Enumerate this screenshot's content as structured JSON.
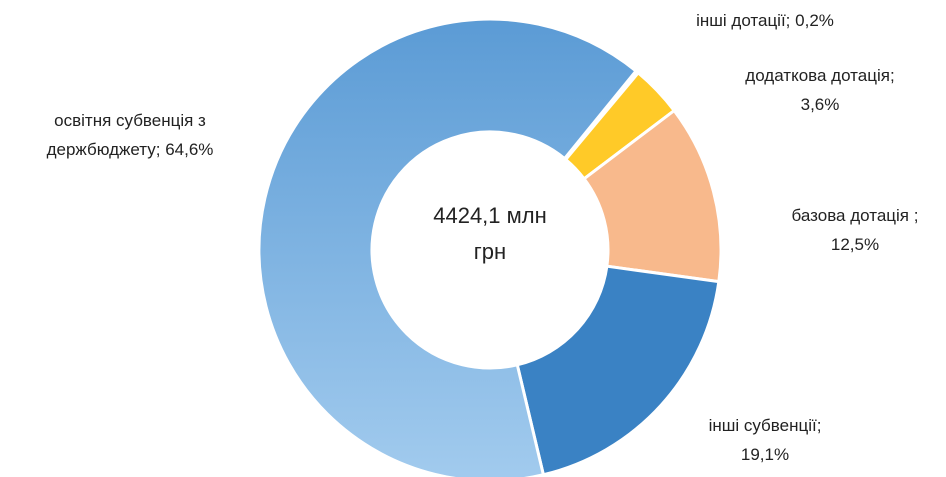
{
  "chart_data": {
    "type": "pie",
    "categories": [
      "інші дотації;",
      "додаткова дотація;",
      "базова дотація ;",
      "інші субвенції;",
      "освітня субвенція з держбюджету;"
    ],
    "values": [
      0.2,
      3.6,
      12.5,
      19.1,
      64.6
    ],
    "value_labels": [
      "0,2%",
      "3,6%",
      "12,5%",
      "19,1%",
      "64,6%"
    ],
    "colors": [
      "#5b9bd5",
      "#ffca28",
      "#f8b98c",
      "#3a82c4",
      "#6fa9dd"
    ],
    "center_label": "4424,1 млн грн"
  }
}
